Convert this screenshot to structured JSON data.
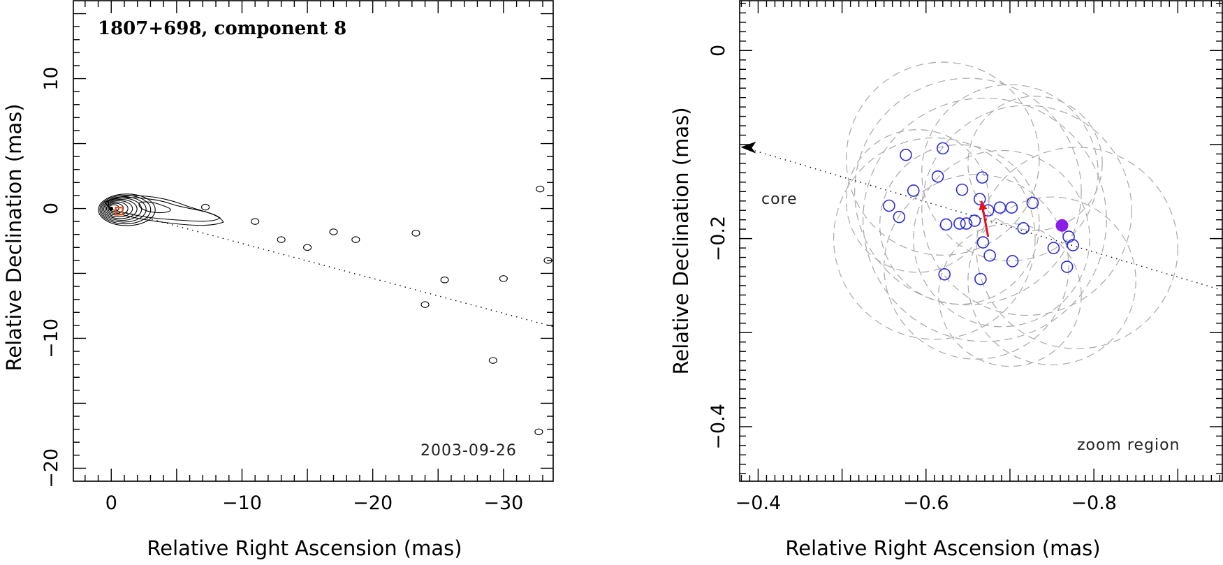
{
  "chart_data": [
    {
      "type": "scatter",
      "title": "1807+698, component 8",
      "epoch_label": "2003-09-26",
      "xlabel": "Relative Right Ascension (mas)",
      "ylabel": "Relative Declination (mas)",
      "xlim": [
        2.9,
        -33.8
      ],
      "ylim": [
        -21,
        16
      ],
      "x_ticks": [
        0,
        -10,
        -20,
        -30
      ],
      "x_tick_labels": [
        "0",
        "−10",
        "−20",
        "−30"
      ],
      "y_ticks": [
        10,
        0,
        -10,
        -20
      ],
      "y_tick_labels": [
        "10",
        "0",
        "−10",
        "−20"
      ],
      "jet_direction_line": {
        "from": [
          0,
          0
        ],
        "to": [
          -33.8,
          -9.1
        ]
      },
      "core": {
        "x": 0,
        "y": 0
      },
      "component_marker": {
        "x": -0.6,
        "y": -0.2,
        "color": "#e5541c"
      },
      "contour_islands": [
        {
          "x": -7.2,
          "y": 0.1
        },
        {
          "x": -11,
          "y": -1
        },
        {
          "x": -13,
          "y": -2.4
        },
        {
          "x": -15,
          "y": -3
        },
        {
          "x": -17,
          "y": -1.8
        },
        {
          "x": -18.7,
          "y": -2.4
        },
        {
          "x": -23.3,
          "y": -1.9
        },
        {
          "x": -25.5,
          "y": -5.5
        },
        {
          "x": -24,
          "y": -7.4
        },
        {
          "x": -30,
          "y": -5.4
        },
        {
          "x": -29.2,
          "y": -11.7
        },
        {
          "x": -32.7,
          "y": -17.2
        },
        {
          "x": -33.4,
          "y": -4
        },
        {
          "x": -32.8,
          "y": 1.5
        }
      ]
    },
    {
      "type": "scatter",
      "annotation": "zoom region",
      "core_label": "core",
      "xlabel": "Relative Right Ascension (mas)",
      "ylabel": "Relative Declination (mas)",
      "xlim": [
        -0.378,
        -0.953
      ],
      "ylim": [
        -0.458,
        0.053
      ],
      "x_ticks": [
        -0.4,
        -0.6,
        -0.8
      ],
      "x_tick_labels": [
        "−0.4",
        "−0.6",
        "−0.8"
      ],
      "y_ticks": [
        0,
        -0.2,
        -0.4
      ],
      "y_tick_labels": [
        "0",
        "−0.2",
        "−0.4"
      ],
      "jet_direction_line": {
        "from": [
          -0.39,
          -0.105
        ],
        "to": [
          -0.953,
          -0.255
        ]
      },
      "component_positions": [
        {
          "x": -0.576,
          "y": -0.111
        },
        {
          "x": -0.62,
          "y": -0.104
        },
        {
          "x": -0.614,
          "y": -0.134
        },
        {
          "x": -0.667,
          "y": -0.135
        },
        {
          "x": -0.585,
          "y": -0.149
        },
        {
          "x": -0.643,
          "y": -0.148
        },
        {
          "x": -0.556,
          "y": -0.165
        },
        {
          "x": -0.664,
          "y": -0.158
        },
        {
          "x": -0.727,
          "y": -0.162
        },
        {
          "x": -0.674,
          "y": -0.17
        },
        {
          "x": -0.688,
          "y": -0.167
        },
        {
          "x": -0.702,
          "y": -0.167
        },
        {
          "x": -0.568,
          "y": -0.177
        },
        {
          "x": -0.624,
          "y": -0.185
        },
        {
          "x": -0.64,
          "y": -0.184
        },
        {
          "x": -0.648,
          "y": -0.184
        },
        {
          "x": -0.658,
          "y": -0.181
        },
        {
          "x": -0.716,
          "y": -0.189
        },
        {
          "x": -0.668,
          "y": -0.204
        },
        {
          "x": -0.77,
          "y": -0.198
        },
        {
          "x": -0.775,
          "y": -0.207
        },
        {
          "x": -0.752,
          "y": -0.21
        },
        {
          "x": -0.676,
          "y": -0.218
        },
        {
          "x": -0.703,
          "y": -0.224
        },
        {
          "x": -0.768,
          "y": -0.23
        },
        {
          "x": -0.622,
          "y": -0.238
        },
        {
          "x": -0.665,
          "y": -0.243
        }
      ],
      "highlight_component": {
        "x": -0.762,
        "y": -0.186,
        "color": "#8a1ee8"
      },
      "velocity_arrow": {
        "from": [
          -0.674,
          -0.198
        ],
        "to": [
          -0.666,
          -0.16
        ],
        "color": "#e8101a"
      },
      "uncertainty_ellipses": [
        {
          "cx": -0.62,
          "cy": -0.115,
          "r": 0.115
        },
        {
          "cx": -0.65,
          "cy": -0.15,
          "r": 0.135
        },
        {
          "cx": -0.7,
          "cy": -0.13,
          "r": 0.105
        },
        {
          "cx": -0.64,
          "cy": -0.185,
          "r": 0.095
        },
        {
          "cx": -0.72,
          "cy": -0.17,
          "r": 0.125
        },
        {
          "cx": -0.61,
          "cy": -0.2,
          "r": 0.12
        },
        {
          "cx": -0.78,
          "cy": -0.21,
          "r": 0.12
        },
        {
          "cx": -0.69,
          "cy": -0.2,
          "r": 0.105
        },
        {
          "cx": -0.66,
          "cy": -0.23,
          "r": 0.11
        },
        {
          "cx": -0.75,
          "cy": -0.245,
          "r": 0.1
        },
        {
          "cx": -0.59,
          "cy": -0.16,
          "r": 0.085
        },
        {
          "cx": -0.67,
          "cy": -0.18,
          "r": 0.145
        },
        {
          "cx": -0.73,
          "cy": -0.12,
          "r": 0.08
        },
        {
          "cx": -0.7,
          "cy": -0.26,
          "r": 0.085
        }
      ]
    }
  ]
}
